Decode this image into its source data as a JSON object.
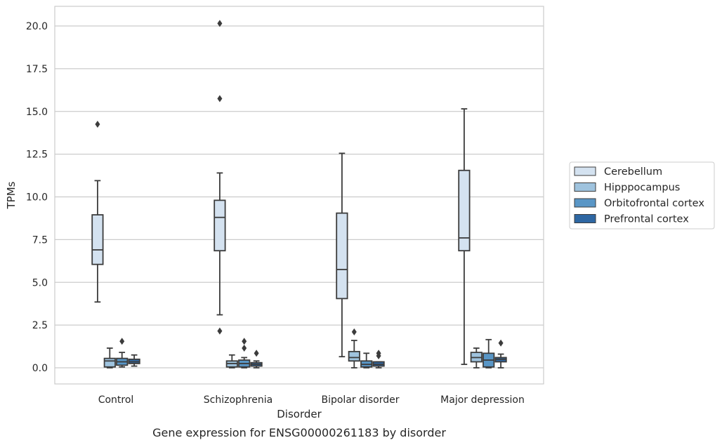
{
  "chart_data": {
    "type": "box",
    "caption": "Gene expression for ENSG00000261183 by disorder",
    "xlabel": "Disorder",
    "ylabel": "TPMs",
    "ylim": [
      -1.0,
      21.2
    ],
    "yticks": [
      "0.0",
      "2.5",
      "5.0",
      "7.5",
      "10.0",
      "12.5",
      "15.0",
      "17.5",
      "20.0"
    ],
    "ytick_values": [
      0,
      2.5,
      5,
      7.5,
      10,
      12.5,
      15,
      17.5,
      20
    ],
    "grid": "horizontal",
    "legend_position": "right",
    "categories": [
      "Control",
      "Schizophrenia",
      "Bipolar disorder",
      "Major depression"
    ],
    "series": [
      {
        "name": "Cerebellum",
        "color": "#d4e2f0",
        "boxes": [
          {
            "whislo": 3.85,
            "q1": 6.05,
            "med": 6.9,
            "q3": 8.95,
            "whishi": 10.95,
            "fliers": [
              14.25
            ]
          },
          {
            "whislo": 3.1,
            "q1": 6.85,
            "med": 8.8,
            "q3": 9.8,
            "whishi": 11.4,
            "fliers": [
              2.15,
              15.75,
              20.15
            ]
          },
          {
            "whislo": 0.65,
            "q1": 4.05,
            "med": 5.75,
            "q3": 9.05,
            "whishi": 12.55,
            "fliers": []
          },
          {
            "whislo": 0.2,
            "q1": 6.85,
            "med": 7.6,
            "q3": 11.55,
            "whishi": 15.15,
            "fliers": []
          }
        ]
      },
      {
        "name": "Hipppocampus",
        "color": "#9fc3de",
        "boxes": [
          {
            "whislo": 0.0,
            "q1": 0.05,
            "med": 0.4,
            "q3": 0.55,
            "whishi": 1.15,
            "fliers": []
          },
          {
            "whislo": 0.0,
            "q1": 0.05,
            "med": 0.25,
            "q3": 0.4,
            "whishi": 0.75,
            "fliers": []
          },
          {
            "whislo": 0.0,
            "q1": 0.4,
            "med": 0.6,
            "q3": 0.95,
            "whishi": 1.6,
            "fliers": [
              2.1
            ]
          },
          {
            "whislo": 0.0,
            "q1": 0.35,
            "med": 0.6,
            "q3": 0.9,
            "whishi": 1.15,
            "fliers": []
          }
        ]
      },
      {
        "name": "Orbitofrontal cortex",
        "color": "#5996c6",
        "boxes": [
          {
            "whislo": 0.05,
            "q1": 0.15,
            "med": 0.35,
            "q3": 0.55,
            "whishi": 0.9,
            "fliers": [
              1.55
            ]
          },
          {
            "whislo": 0.0,
            "q1": 0.05,
            "med": 0.25,
            "q3": 0.45,
            "whishi": 0.6,
            "fliers": [
              1.15,
              1.55
            ]
          },
          {
            "whislo": 0.0,
            "q1": 0.05,
            "med": 0.2,
            "q3": 0.4,
            "whishi": 0.85,
            "fliers": []
          },
          {
            "whislo": 0.0,
            "q1": 0.05,
            "med": 0.45,
            "q3": 0.85,
            "whishi": 1.65,
            "fliers": []
          }
        ]
      },
      {
        "name": "Prefrontal cortex",
        "color": "#2e67a3",
        "boxes": [
          {
            "whislo": 0.1,
            "q1": 0.25,
            "med": 0.35,
            "q3": 0.5,
            "whishi": 0.75,
            "fliers": []
          },
          {
            "whislo": 0.0,
            "q1": 0.1,
            "med": 0.2,
            "q3": 0.3,
            "whishi": 0.4,
            "fliers": [
              0.85
            ]
          },
          {
            "whislo": 0.0,
            "q1": 0.1,
            "med": 0.2,
            "q3": 0.35,
            "whishi": 0.35,
            "fliers": [
              0.7,
              0.85
            ]
          },
          {
            "whislo": 0.0,
            "q1": 0.35,
            "med": 0.5,
            "q3": 0.6,
            "whishi": 0.8,
            "fliers": [
              1.45
            ]
          }
        ]
      }
    ]
  }
}
